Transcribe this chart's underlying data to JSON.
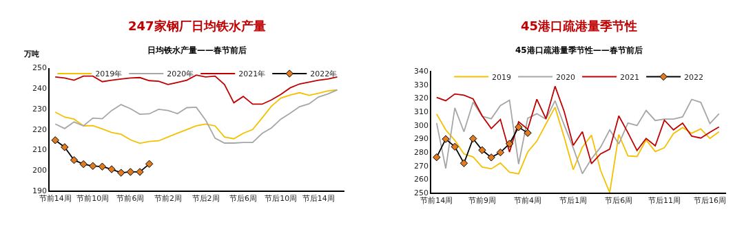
{
  "chart_data": [
    {
      "type": "line",
      "title": "247家钢厂日均铁水产量",
      "subtitle": "日均铁水产量——春节前后",
      "ylabel": "万吨",
      "categories": [
        "节前14周",
        null,
        null,
        null,
        "节前10周",
        null,
        null,
        null,
        "节前6周",
        null,
        null,
        null,
        "节前2周",
        null,
        null,
        null,
        "节后2周",
        null,
        null,
        null,
        "节后6周",
        null,
        null,
        null,
        "节后10周",
        null,
        null,
        null,
        "节后14周",
        null,
        null
      ],
      "ylim": [
        190,
        250
      ],
      "yticks": [
        190,
        200,
        210,
        220,
        230,
        240,
        250
      ],
      "legend": "top",
      "marker": "none",
      "series": [
        {
          "name": "2019年",
          "color": "#f5c000",
          "values": [
            228.3,
            225.9,
            224.9,
            221.6,
            221.7,
            220.1,
            218.4,
            217.5,
            214.8,
            213.1,
            214.0,
            214.3,
            216.2,
            218.0,
            219.8,
            221.6,
            222.5,
            221.6,
            216.2,
            215.3,
            218.0,
            219.8,
            225.4,
            231.2,
            235.2,
            236.7,
            237.8,
            236.5,
            237.5,
            238.7,
            239.2
          ]
        },
        {
          "name": "2020年",
          "color": "#a6a6a6",
          "values": [
            222.5,
            220.3,
            223.5,
            221.6,
            225.4,
            225.1,
            229.1,
            232.0,
            230.0,
            227.3,
            227.5,
            229.7,
            229.1,
            227.6,
            230.5,
            230.7,
            224.4,
            215.6,
            213.2,
            213.2,
            213.5,
            213.5,
            217.9,
            220.6,
            224.9,
            227.8,
            231.0,
            232.4,
            235.7,
            237.2,
            239.2
          ]
        },
        {
          "name": "2021年",
          "color": "#c00000",
          "values": [
            245.5,
            245.0,
            243.9,
            245.9,
            245.9,
            243.2,
            243.9,
            244.5,
            245.0,
            245.2,
            243.7,
            243.4,
            241.8,
            242.8,
            243.9,
            246.4,
            245.5,
            245.9,
            241.8,
            232.9,
            236.0,
            232.2,
            232.2,
            234.3,
            237.0,
            240.2,
            242.1,
            243.0,
            243.9,
            244.5,
            245.5
          ]
        },
        {
          "name": "2022年",
          "color": "#000000",
          "marker": "diamond",
          "values": [
            214.6,
            211.2,
            204.9,
            202.9,
            202.0,
            201.7,
            200.4,
            198.7,
            199.1,
            199.1,
            203.0,
            null,
            null,
            null,
            null,
            null,
            null,
            null,
            null,
            null,
            null,
            null,
            null,
            null,
            null,
            null,
            null,
            null,
            null,
            null,
            null
          ]
        }
      ]
    },
    {
      "type": "line",
      "title": "45港口疏港量季节性",
      "subtitle": "45港口疏港量季节性——春节前后",
      "categories": [
        "节前14周",
        null,
        null,
        null,
        null,
        "节前9周",
        null,
        null,
        null,
        null,
        "节前4周",
        null,
        null,
        null,
        null,
        "节后1周",
        null,
        null,
        null,
        null,
        "节后6周",
        null,
        null,
        null,
        null,
        "节后11周",
        null,
        null,
        null,
        null,
        "节后16周",
        null
      ],
      "ylim": [
        250,
        340
      ],
      "yticks": [
        250,
        260,
        270,
        280,
        290,
        300,
        310,
        320,
        330,
        340
      ],
      "legend": "top",
      "marker": "none",
      "series": [
        {
          "name": "2019",
          "color": "#f5c000",
          "values": [
            308.1,
            296.4,
            288.6,
            278.6,
            276.4,
            268.9,
            267.6,
            271.9,
            265.0,
            263.9,
            280.0,
            288.1,
            300.7,
            313.1,
            291.0,
            266.9,
            283.6,
            292.4,
            266.4,
            250.0,
            292.9,
            277.1,
            276.7,
            288.9,
            280.3,
            283.1,
            293.6,
            298.1,
            293.9,
            297.1,
            290.0,
            295.0
          ]
        },
        {
          "name": "2020",
          "color": "#a6a6a6",
          "values": [
            301.4,
            267.9,
            312.6,
            295.0,
            316.9,
            306.4,
            304.6,
            314.3,
            318.3,
            271.1,
            305.0,
            308.3,
            304.3,
            317.9,
            300.0,
            283.0,
            264.0,
            275.0,
            283.6,
            296.4,
            286.0,
            301.4,
            299.6,
            310.7,
            303.3,
            304.3,
            304.3,
            306.0,
            318.9,
            316.7,
            301.0,
            308.3
          ]
        },
        {
          "name": "2021",
          "color": "#c00000",
          "values": [
            320.4,
            317.9,
            322.9,
            322.0,
            319.3,
            306.7,
            297.4,
            304.1,
            280.0,
            302.4,
            296.9,
            319.0,
            304.6,
            328.6,
            310.0,
            285.0,
            295.0,
            271.4,
            278.6,
            282.1,
            306.7,
            294.3,
            281.1,
            290.0,
            284.6,
            303.6,
            296.4,
            301.4,
            291.7,
            290.3,
            294.6,
            298.6
          ]
        },
        {
          "name": "2022",
          "color": "#000000",
          "marker": "diamond",
          "values": [
            276.1,
            289.6,
            283.9,
            271.7,
            289.9,
            281.4,
            276.0,
            279.7,
            286.1,
            298.4,
            294.1,
            null,
            null,
            null,
            null,
            null,
            null,
            null,
            null,
            null,
            null,
            null,
            null,
            null,
            null,
            null,
            null,
            null,
            null,
            null,
            null,
            null
          ]
        }
      ]
    }
  ]
}
